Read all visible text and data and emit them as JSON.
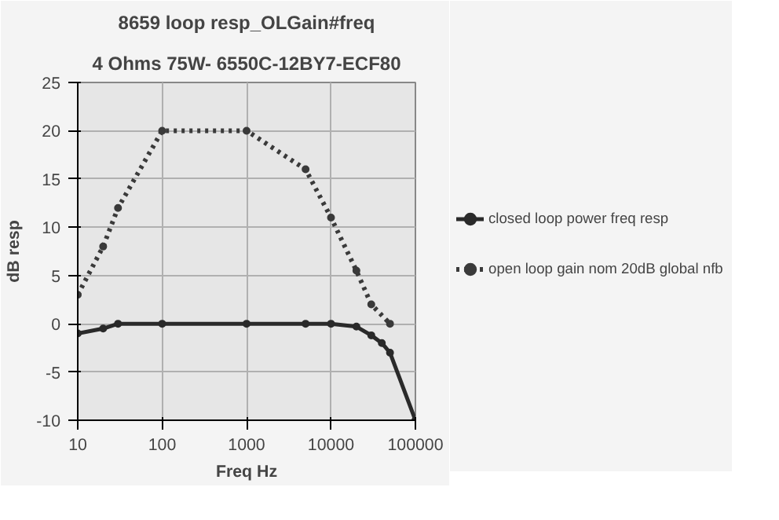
{
  "chart_data": {
    "type": "line",
    "title": "8659 loop resp_OLGain#freq",
    "subtitle": "4 Ohms 75W- 6550C-12BY7-ECF80",
    "xlabel": "Freq Hz",
    "ylabel": "dB resp",
    "log": "x",
    "xlim": [
      10,
      100000
    ],
    "xticks": [
      10,
      100,
      1000,
      10000,
      100000
    ],
    "ylim": [
      -10,
      25
    ],
    "yticks": [
      -10,
      -5,
      0,
      5,
      10,
      15,
      20,
      25
    ],
    "grid": true,
    "legend": "right",
    "marker": "circle",
    "series": [
      {
        "name": "closed loop power freq resp",
        "color": "#2a2a2a",
        "line_style": "solid",
        "x": [
          10,
          20,
          30,
          100,
          1000,
          5000,
          10000,
          20000,
          30000,
          40000,
          50000,
          100000
        ],
        "values": [
          -1,
          -0.5,
          0,
          0,
          0,
          0,
          0,
          -0.3,
          -1.2,
          -2,
          -3,
          -10
        ]
      },
      {
        "name": "open loop gain nom 20dB global nfb",
        "color": "#3a3a3a",
        "line_style": "dotted",
        "x": [
          10,
          20,
          30,
          100,
          1000,
          5000,
          10000,
          20000,
          30000,
          50000
        ],
        "values": [
          3,
          8,
          12,
          20,
          20,
          16,
          11,
          5.5,
          2,
          0
        ]
      }
    ]
  }
}
